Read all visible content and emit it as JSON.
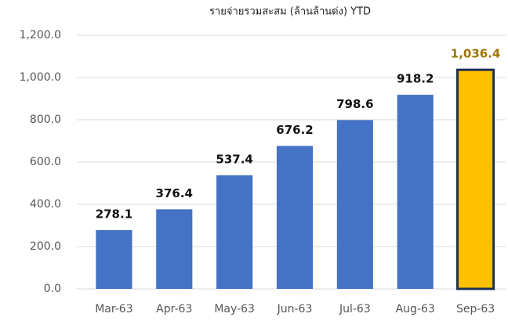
{
  "chart_data": {
    "type": "bar",
    "title": "รายจ่ายรวมสะสม (ล้านล้านด่ง) YTD",
    "categories": [
      "Mar-63",
      "Apr-63",
      "May-63",
      "Jun-63",
      "Jul-63",
      "Aug-63",
      "Sep-63"
    ],
    "values": [
      278.1,
      376.4,
      537.4,
      676.2,
      798.6,
      918.2,
      1036.4
    ],
    "value_labels": [
      "278.1",
      "376.4",
      "537.4",
      "676.2",
      "798.6",
      "918.2",
      "1,036.4"
    ],
    "colors": [
      "#4472c4",
      "#4472c4",
      "#4472c4",
      "#4472c4",
      "#4472c4",
      "#4472c4",
      "#ffc000"
    ],
    "edgecolors": [
      "#4472c4",
      "#4472c4",
      "#4472c4",
      "#4472c4",
      "#4472c4",
      "#4472c4",
      "#1f3050"
    ],
    "label_colors": [
      "#111111",
      "#111111",
      "#111111",
      "#111111",
      "#111111",
      "#111111",
      "#9c7400"
    ],
    "ylim": [
      0,
      1200
    ],
    "yticks": [
      {
        "value": 0,
        "label": "0.0"
      },
      {
        "value": 200,
        "label": "200.0"
      },
      {
        "value": 400,
        "label": "400.0"
      },
      {
        "value": 600,
        "label": "600.0"
      },
      {
        "value": 800,
        "label": "800.0"
      },
      {
        "value": 1000,
        "label": "1,000.0"
      },
      {
        "value": 1200,
        "label": "1,200.0"
      }
    ],
    "grid": true
  }
}
